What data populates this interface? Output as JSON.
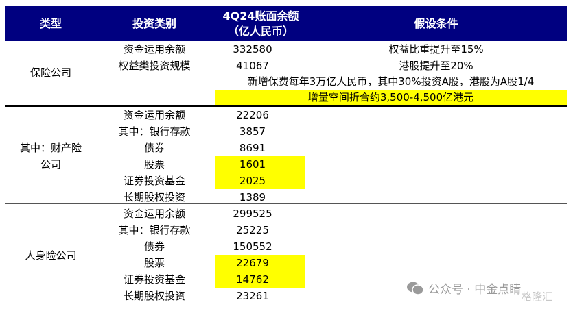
{
  "header": {
    "col1": "类型",
    "col2": "投资类别",
    "col3_line1": "4Q24账面余额",
    "col3_line2": "（亿人民币）",
    "col4": "假设条件"
  },
  "insurance": {
    "group": "保险公司",
    "rows": [
      {
        "category": "资金运用余额",
        "value": "332580",
        "assumption": "权益比重提升至15%"
      },
      {
        "category": "权益类投资规模",
        "value": "41067",
        "assumption": "港股提升至20%"
      }
    ],
    "note": "新增保费每年3万亿人民币，其中30%投资A股，港股为A股1/4",
    "conclusion": "增量空间折合约3,500-4,500亿港元"
  },
  "property": {
    "group_line1": "其中：财产险",
    "group_line2": "公司",
    "rows": [
      {
        "category": "资金运用余额",
        "value": "22206",
        "highlight": false
      },
      {
        "category": "其中：银行存款",
        "value": "3857",
        "highlight": false
      },
      {
        "category": "债券",
        "value": "8691",
        "highlight": false
      },
      {
        "category": "股票",
        "value": "1601",
        "highlight": true
      },
      {
        "category": "证券投资基金",
        "value": "2025",
        "highlight": true
      },
      {
        "category": "长期股权投资",
        "value": "1389",
        "highlight": false
      }
    ]
  },
  "life": {
    "group": "人身险公司",
    "rows": [
      {
        "category": "资金运用余额",
        "value": "299525",
        "highlight": false
      },
      {
        "category": "其中：银行存款",
        "value": "25225",
        "highlight": false
      },
      {
        "category": "债券",
        "value": "150552",
        "highlight": false
      },
      {
        "category": "股票",
        "value": "22679",
        "highlight": true
      },
      {
        "category": "证券投资基金",
        "value": "14762",
        "highlight": true
      },
      {
        "category": "长期股权投资",
        "value": "23261",
        "highlight": false
      }
    ]
  },
  "watermark": {
    "text": "公众号 · 中金点睛",
    "logo": "格隆汇",
    "icon": "wechat-icon"
  },
  "colors": {
    "header_bg": "#000080",
    "highlight": "#ffff00"
  }
}
